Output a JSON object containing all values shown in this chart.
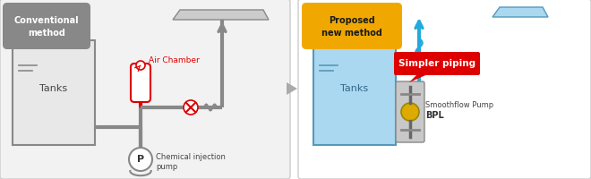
{
  "bg_color": "#ffffff",
  "title_left": "Conventional\nmethod",
  "title_left_bg": "#888888",
  "title_left_fg": "#ffffff",
  "title_right": "Proposed\nnew method",
  "title_right_bg": "#f0a800",
  "title_right_fg": "#1a1a1a",
  "air_chamber_label": "Air Chamber",
  "air_chamber_color": "#dd0000",
  "simpler_piping_label": "Simpler piping",
  "simpler_piping_bg": "#dd0000",
  "simpler_piping_fg": "#ffffff",
  "chem_pump_label": "Chemical injection\npump",
  "smoothflow_label_line1": "Smoothflow Pump",
  "smoothflow_label_line2": "BPL",
  "tanks_label": "Tanks",
  "pipe_color_left": "#888888",
  "pipe_color_right": "#22aadd",
  "tank_fill_left": "#e8e8e8",
  "tank_fill_right": "#aad8f0",
  "tank_edge_left": "#888888",
  "tank_edge_right": "#5599bb",
  "outlet_fill_left": "#cccccc",
  "outlet_fill_right": "#aad8f0",
  "outlet_edge_right": "#5599bb",
  "panel_left_fill": "#f2f2f2",
  "panel_right_fill": "#ffffff",
  "panel_edge": "#cccccc",
  "arrow_mid_color": "#aaaaaa",
  "valve_color": "#dd0000",
  "water_line_color_left": "#888888",
  "water_line_color_right": "#5599bb"
}
